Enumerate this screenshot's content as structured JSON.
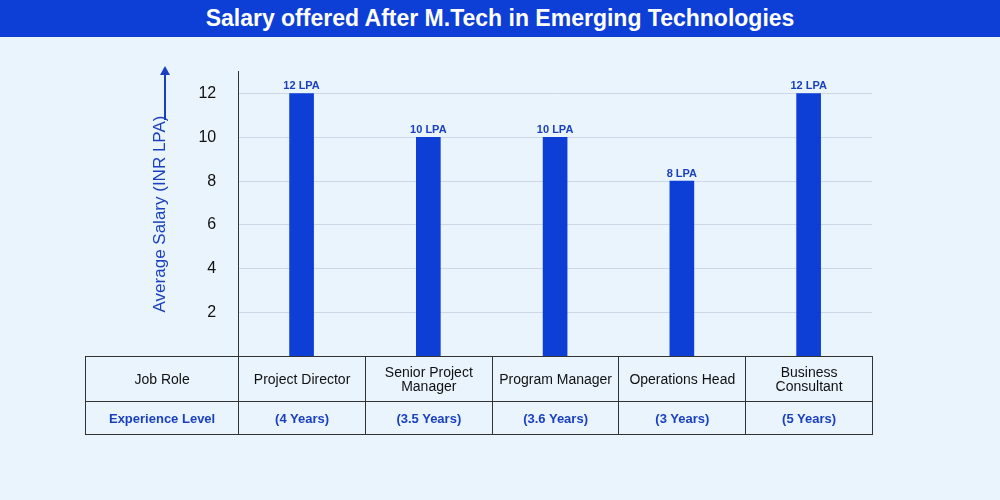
{
  "chart_data": {
    "type": "bar",
    "title": "Salary offered After M.Tech in Emerging Technologies",
    "y_label": "Average Salary (INR LPA)",
    "categories": [
      "Project Director",
      "Senior Project Manager",
      "Program Manager",
      "Operations Head",
      "Business Consultant"
    ],
    "values": [
      12,
      10,
      10,
      8,
      12
    ],
    "value_labels": [
      "12 LPA",
      "10 LPA",
      "10 LPA",
      "8 LPA",
      "12 LPA"
    ],
    "color": "#0d3ed6",
    "ylim": [
      0,
      13
    ],
    "yticks": [
      2,
      4,
      6,
      8,
      10,
      12
    ],
    "grid": true,
    "data_labels": true,
    "tick_labels": "y",
    "table": {
      "header": "Job Role",
      "rows": [
        {
          "label": "Experience Level",
          "cells": [
            "(4 Years)",
            "(3.5 Years)",
            "(3.6 Years)",
            "(3 Years)",
            "(5 Years)"
          ]
        }
      ]
    }
  }
}
